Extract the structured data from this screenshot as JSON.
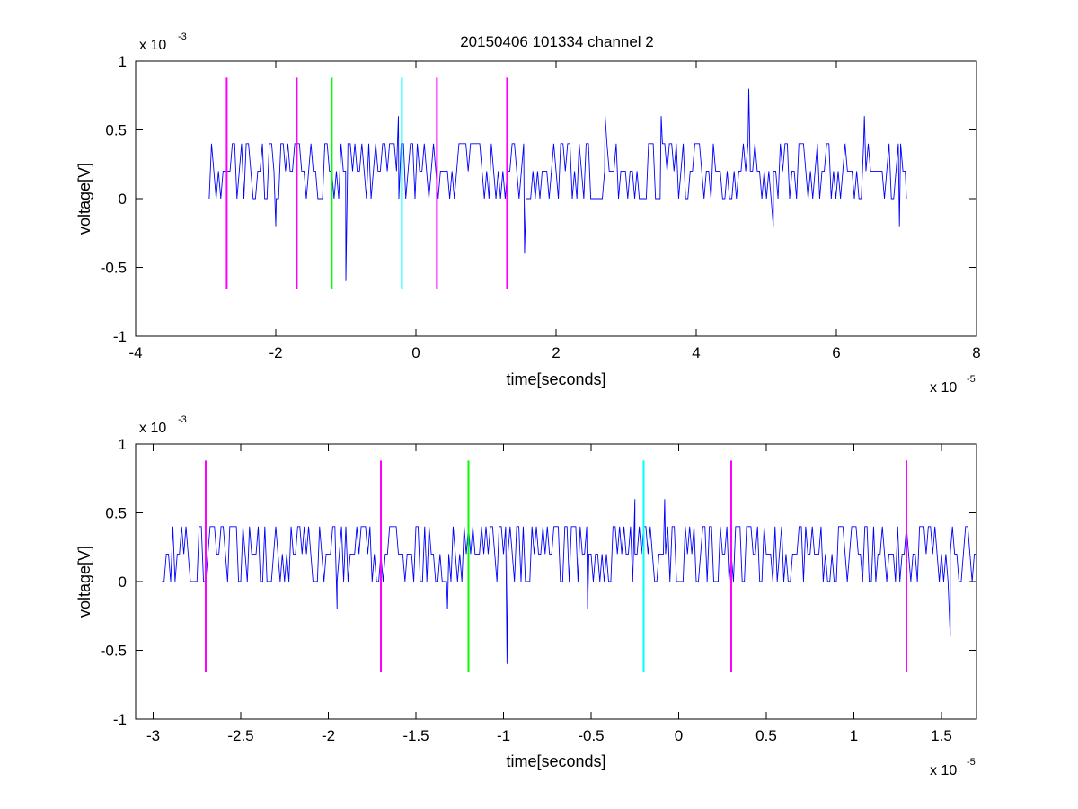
{
  "chart_data": [
    {
      "type": "line",
      "title": "20150406 101334 channel 2",
      "xlabel": "time[seconds]",
      "ylabel": "voltage[V]",
      "xlim": [
        -4,
        8
      ],
      "ylim": [
        -1,
        1
      ],
      "x_multiplier": "x 10",
      "x_exponent": "-5",
      "y_multiplier": "x 10",
      "y_exponent": "-3",
      "xticks": [
        -4,
        -2,
        0,
        2,
        4,
        6,
        8
      ],
      "xtick_labels": [
        "-4",
        "-2",
        "0",
        "2",
        "4",
        "6",
        "8"
      ],
      "yticks": [
        -1,
        -0.5,
        0,
        0.5,
        1
      ],
      "ytick_labels": [
        "-1",
        "-0.5",
        "0",
        "0.5",
        "1"
      ],
      "series": [
        {
          "color": "#0000ff",
          "x_range": [
            -2.95,
            7.0
          ],
          "baseline": 0.2,
          "levels": [
            0,
            0.2,
            0.4
          ],
          "spikes": [
            {
              "x": -2.0,
              "y": -0.2
            },
            {
              "x": -1.0,
              "y": -0.6
            },
            {
              "x": -0.25,
              "y": 0.6
            },
            {
              "x": 1.55,
              "y": -0.4
            },
            {
              "x": 2.7,
              "y": 0.6
            },
            {
              "x": 3.5,
              "y": 0.6
            },
            {
              "x": 4.75,
              "y": 0.8
            },
            {
              "x": 5.1,
              "y": -0.2
            },
            {
              "x": 6.4,
              "y": 0.6
            },
            {
              "x": 6.9,
              "y": -0.2
            }
          ]
        }
      ],
      "markers": [
        {
          "x": -2.7,
          "y": [
            -0.66,
            0.88
          ],
          "color": "#ff00ff"
        },
        {
          "x": -1.7,
          "y": [
            -0.66,
            0.88
          ],
          "color": "#ff00ff"
        },
        {
          "x": -1.2,
          "y": [
            -0.66,
            0.88
          ],
          "color": "#00ff00"
        },
        {
          "x": -0.2,
          "y": [
            -0.66,
            0.88
          ],
          "color": "#00ffff"
        },
        {
          "x": 0.3,
          "y": [
            -0.66,
            0.88
          ],
          "color": "#ff00ff"
        },
        {
          "x": 1.3,
          "y": [
            -0.66,
            0.88
          ],
          "color": "#ff00ff"
        }
      ]
    },
    {
      "type": "line",
      "title": "",
      "xlabel": "time[seconds]",
      "ylabel": "voltage[V]",
      "xlim": [
        -3.1,
        1.7
      ],
      "ylim": [
        -1,
        1
      ],
      "x_multiplier": "x 10",
      "x_exponent": "-5",
      "y_multiplier": "x 10",
      "y_exponent": "-3",
      "xticks": [
        -3,
        -2.5,
        -2,
        -1.5,
        -1,
        -0.5,
        0,
        0.5,
        1,
        1.5
      ],
      "xtick_labels": [
        "-3",
        "-2.5",
        "-2",
        "-1.5",
        "-1",
        "-0.5",
        "0",
        "0.5",
        "1",
        "1.5"
      ],
      "yticks": [
        -1,
        -0.5,
        0,
        0.5,
        1
      ],
      "ytick_labels": [
        "-1",
        "-0.5",
        "0",
        "0.5",
        "1"
      ],
      "series": [
        {
          "color": "#0000ff",
          "x_range": [
            -2.95,
            1.7
          ],
          "baseline": 0.2,
          "levels": [
            0,
            0.2,
            0.4
          ],
          "spikes": [
            {
              "x": -1.95,
              "y": -0.2
            },
            {
              "x": -1.32,
              "y": -0.2
            },
            {
              "x": -0.98,
              "y": -0.6
            },
            {
              "x": -0.52,
              "y": -0.2
            },
            {
              "x": -0.25,
              "y": 0.6
            },
            {
              "x": -0.08,
              "y": 0.6
            },
            {
              "x": 1.55,
              "y": -0.4
            }
          ]
        }
      ],
      "markers": [
        {
          "x": -2.7,
          "y": [
            -0.66,
            0.88
          ],
          "color": "#ff00ff"
        },
        {
          "x": -1.7,
          "y": [
            -0.66,
            0.88
          ],
          "color": "#ff00ff"
        },
        {
          "x": -1.2,
          "y": [
            -0.66,
            0.88
          ],
          "color": "#00ff00"
        },
        {
          "x": -0.2,
          "y": [
            -0.66,
            0.88
          ],
          "color": "#00ffff"
        },
        {
          "x": 0.3,
          "y": [
            -0.66,
            0.88
          ],
          "color": "#ff00ff"
        },
        {
          "x": 1.3,
          "y": [
            -0.66,
            0.88
          ],
          "color": "#ff00ff"
        }
      ]
    }
  ]
}
